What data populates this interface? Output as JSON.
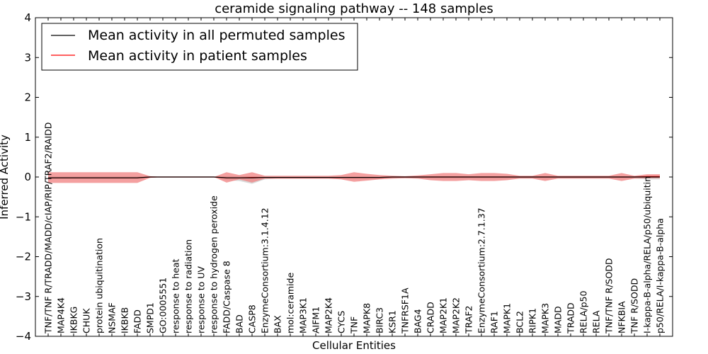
{
  "chart_data": {
    "type": "line",
    "title": "ceramide signaling pathway -- 148 samples",
    "xlabel": "Cellular Entities",
    "ylabel": "Inferred Activity",
    "ylim": [
      -4,
      4
    ],
    "yticks": [
      -4,
      -3,
      -2,
      -1,
      0,
      1,
      2,
      3,
      4
    ],
    "legend_position": "top-left",
    "categories": [
      "TNF/TNF R/TRADD/MADD/cIAP/RIP/TRAF2/RAIDD",
      "MAP4K4",
      "IKBKG",
      "CHUK",
      "protein ubiquitination",
      "NSMAF",
      "IKBKB",
      "FADD",
      "SMPD1",
      "GO:0005551",
      "response to heat",
      "response to radiation",
      "response to UV",
      "response to hydrogen peroxide",
      "FADD/Caspase 8",
      "BAD",
      "CASP8",
      "EnzymeConsortium:3.1.4.12",
      "BAX",
      "mol:ceramide",
      "MAP3K1",
      "AIFM1",
      "MAP2K4",
      "CYCS",
      "TNF",
      "MAPK8",
      "BIRC3",
      "KSR1",
      "TNFRSF1A",
      "BAG4",
      "CRADD",
      "MAP2K1",
      "MAP2K2",
      "TRAF2",
      "EnzymeConsortium:2.7.1.37",
      "RAF1",
      "MAPK1",
      "BCL2",
      "RIPK1",
      "MAPK3",
      "MADD",
      "TRADD",
      "RELA/p50",
      "RELA",
      "TNF/TNF R/SODD",
      "NFKBIA",
      "TNF R/SODD",
      "I-kappa-B-alpha/RELA/p50/ubiquitin",
      "p50/RELA/I-kappa-B-alpha"
    ],
    "series": [
      {
        "name": "Mean activity in all permuted samples",
        "color": "#000000",
        "values": [
          -0.02,
          -0.02,
          -0.02,
          -0.02,
          -0.02,
          -0.02,
          -0.02,
          -0.02,
          0,
          0,
          0,
          0,
          0,
          0,
          -0.02,
          -0.02,
          -0.02,
          -0.01,
          -0.01,
          -0.01,
          -0.01,
          -0.01,
          -0.01,
          -0.01,
          -0.01,
          -0.01,
          -0.01,
          0,
          0,
          0,
          0,
          0,
          0,
          0,
          0,
          0,
          0,
          0,
          0,
          0,
          0,
          0,
          0,
          0,
          0,
          0,
          0,
          0,
          0
        ],
        "band_upper": [
          0.01,
          0.01,
          0.01,
          0.01,
          0.01,
          0.01,
          0.01,
          0.01,
          0.01,
          0,
          0,
          0,
          0,
          0,
          0.02,
          0.02,
          0.02,
          0.01,
          0.01,
          0.01,
          0.01,
          0.01,
          0.01,
          0.01,
          0.01,
          0.01,
          0.01,
          0.01,
          0.01,
          0.01,
          0.01,
          0.01,
          0.01,
          0.01,
          0.01,
          0.01,
          0.01,
          0.01,
          0.01,
          0.01,
          0.01,
          0.01,
          0.01,
          0.01,
          0.01,
          0.01,
          0.01,
          0.01,
          0.01
        ],
        "band_lower": [
          -0.05,
          -0.05,
          -0.05,
          -0.05,
          -0.05,
          -0.05,
          -0.05,
          -0.05,
          -0.02,
          0,
          0,
          0,
          0,
          0,
          -0.08,
          -0.1,
          -0.17,
          -0.06,
          -0.04,
          -0.04,
          -0.04,
          -0.04,
          -0.04,
          -0.05,
          -0.06,
          -0.06,
          -0.05,
          -0.04,
          -0.03,
          -0.04,
          -0.05,
          -0.05,
          -0.05,
          -0.05,
          -0.05,
          -0.05,
          -0.05,
          -0.04,
          -0.04,
          -0.06,
          -0.04,
          -0.04,
          -0.04,
          -0.04,
          -0.04,
          -0.04,
          -0.04,
          -0.06,
          -0.06
        ]
      },
      {
        "name": "Mean activity in patient samples",
        "color": "#ff0000",
        "values": [
          -0.02,
          -0.02,
          -0.02,
          -0.02,
          -0.02,
          -0.02,
          -0.02,
          -0.02,
          0,
          0,
          0,
          0,
          0,
          0,
          -0.02,
          -0.02,
          -0.01,
          -0.01,
          -0.01,
          -0.01,
          -0.01,
          -0.01,
          -0.01,
          -0.01,
          -0.01,
          -0.01,
          -0.01,
          0,
          0,
          0,
          0,
          0,
          0,
          0,
          0,
          0,
          0,
          0,
          0,
          0,
          0,
          0,
          0,
          0,
          0,
          0,
          0,
          0.01,
          0.01
        ],
        "band_upper": [
          0.12,
          0.12,
          0.12,
          0.12,
          0.12,
          0.12,
          0.12,
          0.12,
          0.02,
          0,
          0,
          0,
          0,
          0,
          0.12,
          0.05,
          0.12,
          0.03,
          0.03,
          0.03,
          0.03,
          0.03,
          0.03,
          0.05,
          0.12,
          0.08,
          0.05,
          0.03,
          0.02,
          0.04,
          0.07,
          0.1,
          0.1,
          0.07,
          0.1,
          0.1,
          0.08,
          0.03,
          0.03,
          0.1,
          0.03,
          0.03,
          0.03,
          0.03,
          0.03,
          0.1,
          0.03,
          0.07,
          0.07
        ],
        "band_lower": [
          -0.15,
          -0.15,
          -0.15,
          -0.15,
          -0.15,
          -0.15,
          -0.15,
          -0.15,
          -0.02,
          0,
          0,
          0,
          0,
          0,
          -0.14,
          -0.06,
          -0.14,
          -0.04,
          -0.04,
          -0.04,
          -0.04,
          -0.04,
          -0.04,
          -0.06,
          -0.12,
          -0.09,
          -0.06,
          -0.04,
          -0.03,
          -0.04,
          -0.08,
          -0.1,
          -0.1,
          -0.08,
          -0.1,
          -0.1,
          -0.08,
          -0.04,
          -0.04,
          -0.1,
          -0.04,
          -0.04,
          -0.04,
          -0.04,
          -0.04,
          -0.1,
          -0.04,
          -0.03,
          -0.03
        ]
      }
    ],
    "band_colors": {
      "permuted": "#d9d9d9",
      "patient": "#f08080"
    }
  }
}
